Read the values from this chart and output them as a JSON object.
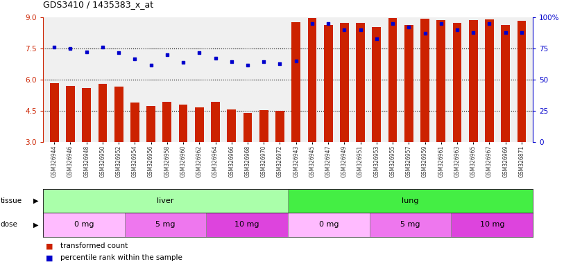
{
  "title": "GDS3410 / 1435383_x_at",
  "samples": [
    "GSM326944",
    "GSM326946",
    "GSM326948",
    "GSM326950",
    "GSM326952",
    "GSM326954",
    "GSM326956",
    "GSM326958",
    "GSM326960",
    "GSM326962",
    "GSM326964",
    "GSM326966",
    "GSM326968",
    "GSM326970",
    "GSM326972",
    "GSM326943",
    "GSM326945",
    "GSM326947",
    "GSM326949",
    "GSM326951",
    "GSM326953",
    "GSM326955",
    "GSM326957",
    "GSM326959",
    "GSM326961",
    "GSM326963",
    "GSM326965",
    "GSM326967",
    "GSM326969",
    "GSM326871"
  ],
  "bar_values": [
    5.85,
    5.72,
    5.62,
    5.82,
    5.68,
    4.9,
    4.75,
    4.95,
    4.8,
    4.68,
    4.93,
    4.58,
    4.42,
    4.55,
    4.5,
    8.78,
    8.95,
    8.62,
    8.72,
    8.72,
    8.52,
    8.95,
    8.62,
    8.93,
    8.88,
    8.72,
    8.88,
    8.9,
    8.62,
    8.82
  ],
  "percentile_values": [
    76,
    75,
    72,
    76,
    71.5,
    67,
    61.5,
    70,
    64,
    71.5,
    67.5,
    64.5,
    61.5,
    64.5,
    63,
    65,
    95,
    95,
    90,
    90,
    83,
    95,
    92,
    87,
    95,
    90,
    88,
    95,
    88,
    88
  ],
  "bar_color": "#cc2200",
  "dot_color": "#0000cc",
  "ylim_left": [
    3,
    9
  ],
  "ylim_right": [
    0,
    100
  ],
  "yticks_left": [
    3,
    4.5,
    6,
    7.5,
    9
  ],
  "yticks_right": [
    0,
    25,
    50,
    75,
    100
  ],
  "tissue_groups": [
    {
      "label": "liver",
      "start": 0,
      "end": 15,
      "color": "#aaffaa"
    },
    {
      "label": "lung",
      "start": 15,
      "end": 30,
      "color": "#44ee44"
    }
  ],
  "dose_groups": [
    {
      "label": "0 mg",
      "start": 0,
      "end": 5,
      "color": "#ffbbff"
    },
    {
      "label": "5 mg",
      "start": 5,
      "end": 10,
      "color": "#ee77ee"
    },
    {
      "label": "10 mg",
      "start": 10,
      "end": 15,
      "color": "#dd44dd"
    },
    {
      "label": "0 mg",
      "start": 15,
      "end": 20,
      "color": "#ffbbff"
    },
    {
      "label": "5 mg",
      "start": 20,
      "end": 25,
      "color": "#ee77ee"
    },
    {
      "label": "10 mg",
      "start": 25,
      "end": 30,
      "color": "#dd44dd"
    }
  ],
  "left_axis_color": "#cc2200",
  "right_axis_color": "#0000cc",
  "plot_bg": "#f0f0f0",
  "bar_bottom": 3
}
